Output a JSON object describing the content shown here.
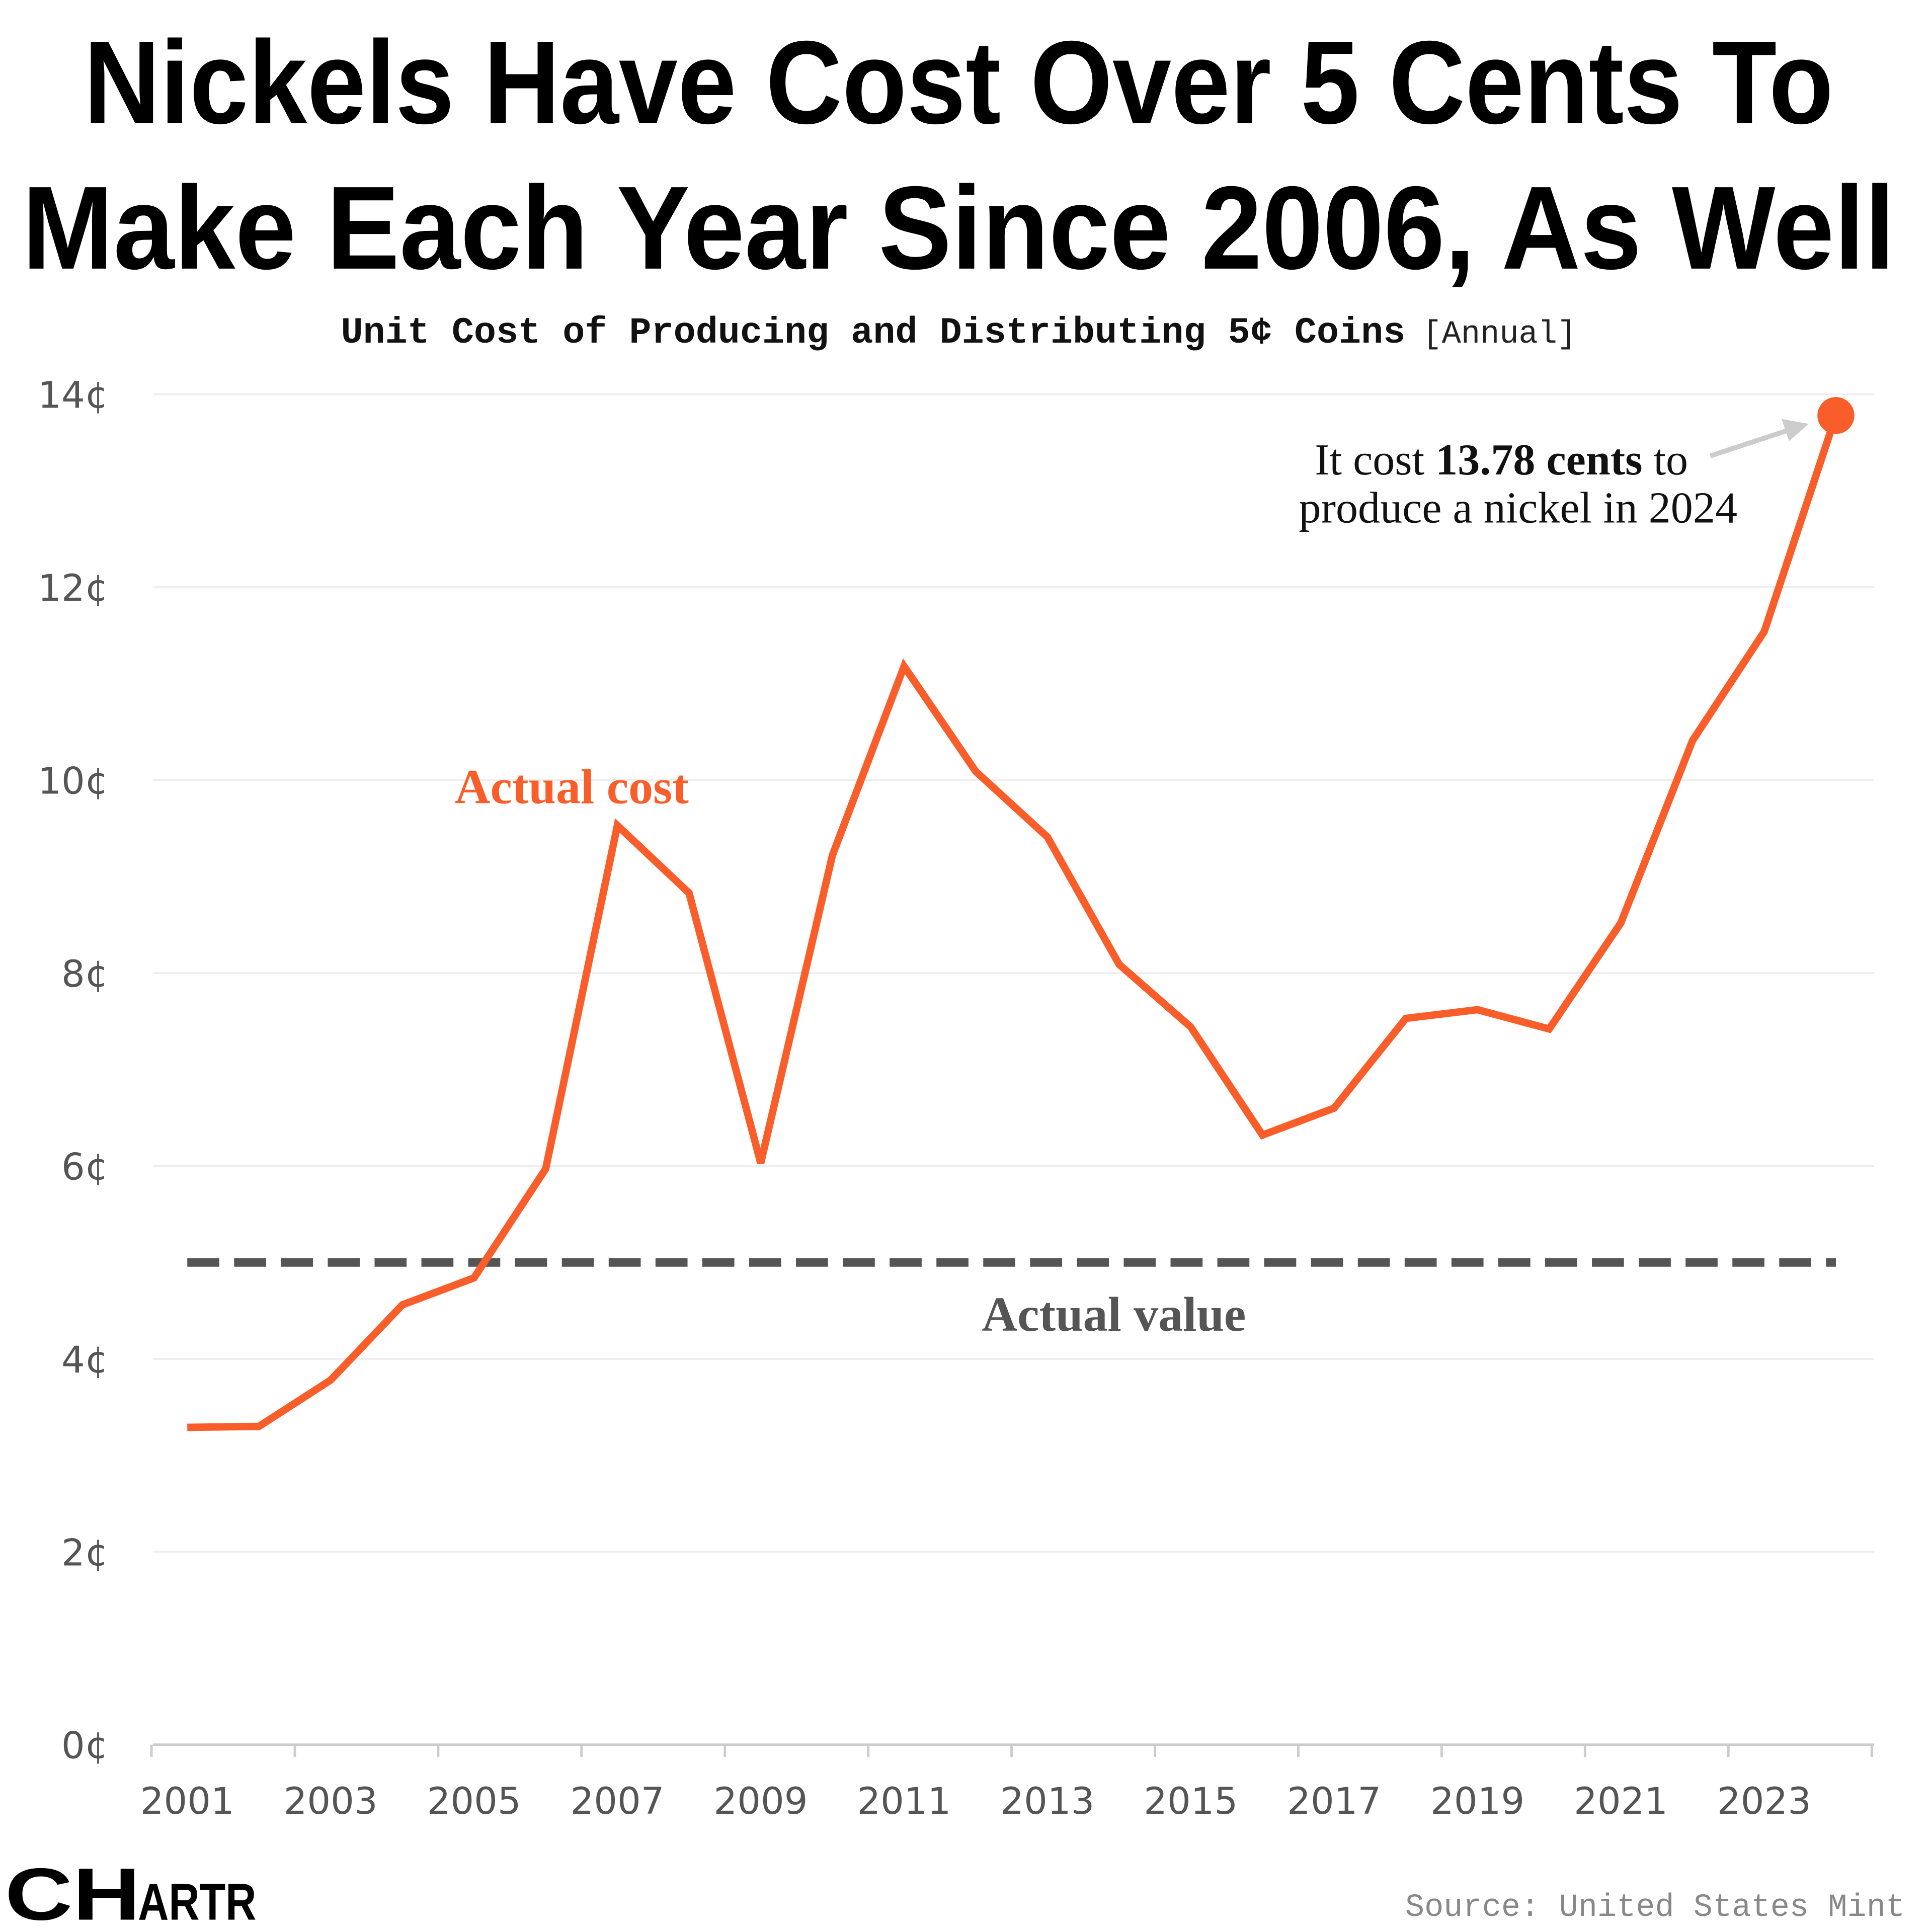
{
  "title_lines": [
    "Nickels Have Cost Over 5 Cents To",
    "Make Each Year Since 2006, As Well"
  ],
  "subtitle": "Unit Cost of Producing and Distributing 5¢ Coins",
  "subtitle_note": "[Annual]",
  "source": "Source: United States Mint",
  "logo": "CHARTR",
  "colors": {
    "cost": "#f95d2a",
    "value": "#555555",
    "grid": "#eeeeee"
  },
  "chart_data": {
    "type": "line",
    "title": "Nickels Have Cost Over 5 Cents To Make Each Year Since 2006, As Well",
    "x": [
      2001,
      2002,
      2003,
      2004,
      2005,
      2006,
      2007,
      2008,
      2009,
      2010,
      2011,
      2012,
      2013,
      2014,
      2015,
      2016,
      2017,
      2018,
      2019,
      2020,
      2021,
      2022,
      2023,
      2024
    ],
    "series": [
      {
        "name": "Actual cost",
        "values": [
          3.29,
          3.3,
          3.78,
          4.56,
          4.84,
          5.97,
          9.53,
          8.83,
          6.03,
          9.22,
          11.18,
          10.09,
          9.41,
          8.09,
          7.44,
          6.32,
          6.6,
          7.53,
          7.62,
          7.42,
          8.52,
          10.41,
          11.54,
          13.78
        ]
      },
      {
        "name": "Actual value",
        "values": [
          5,
          5,
          5,
          5,
          5,
          5,
          5,
          5,
          5,
          5,
          5,
          5,
          5,
          5,
          5,
          5,
          5,
          5,
          5,
          5,
          5,
          5,
          5,
          5
        ],
        "style": "dashed"
      }
    ],
    "ylim": [
      0,
      14
    ],
    "y_ticks": [
      "0¢",
      "2¢",
      "4¢",
      "6¢",
      "8¢",
      "10¢",
      "12¢",
      "14¢"
    ],
    "y_tick_values": [
      0,
      2,
      4,
      6,
      8,
      10,
      12,
      14
    ],
    "x_ticks": [
      "2001",
      "2003",
      "2005",
      "2007",
      "2009",
      "2011",
      "2013",
      "2015",
      "2017",
      "2019",
      "2021",
      "2023"
    ],
    "grid": true,
    "annotation": {
      "line1_pre": "It cost ",
      "line1_bold": "13.78 cents",
      "line1_post": " to",
      "line2": "produce a nickel in 2024"
    }
  }
}
